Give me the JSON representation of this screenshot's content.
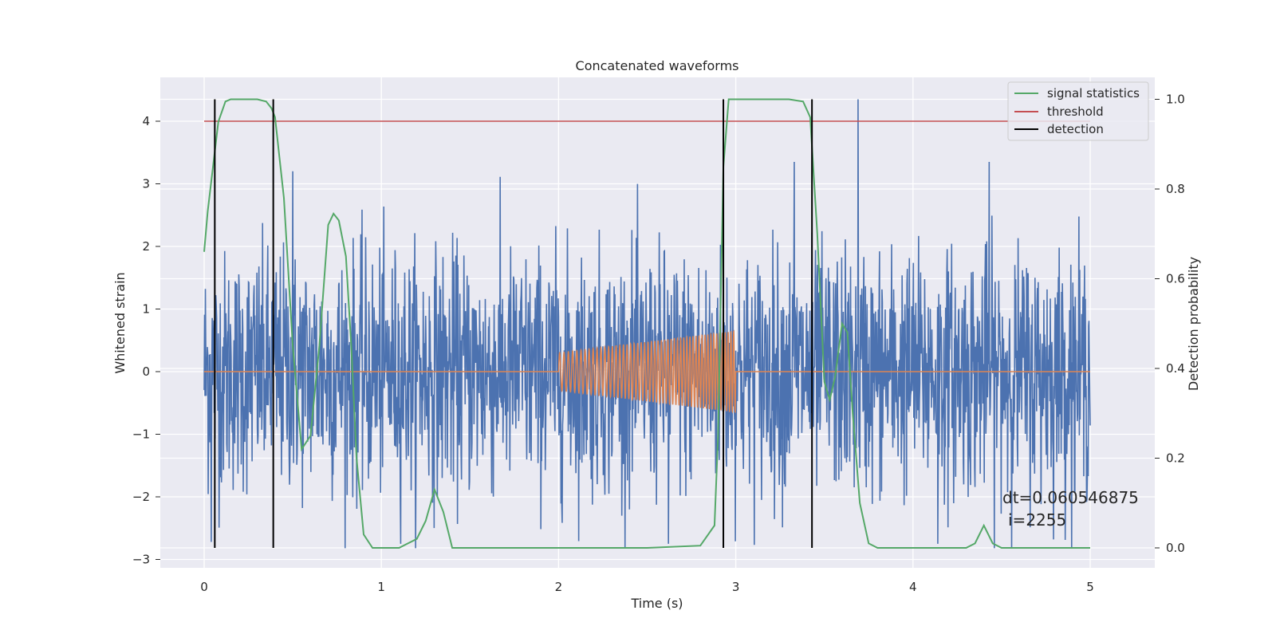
{
  "chart_data": {
    "type": "line",
    "title": "Concatenated waveforms",
    "xlabel": "Time (s)",
    "ylabel": "Whitened strain",
    "y2label": "Detection probability",
    "xlim": [
      -0.25,
      5.35
    ],
    "ylim": [
      -3.2,
      4.55
    ],
    "y2lim": [
      -0.05,
      1.05
    ],
    "x_ticks": [
      0,
      1,
      2,
      3,
      4,
      5
    ],
    "y_ticks": [
      -3,
      -2,
      -1,
      0,
      1,
      2,
      3,
      4
    ],
    "y2_ticks": [
      0.0,
      0.2,
      0.4,
      0.6,
      0.8,
      1.0
    ],
    "x_tick_labels": [
      "0",
      "1",
      "2",
      "3",
      "4",
      "5"
    ],
    "y_tick_labels": [
      "−3",
      "−2",
      "−1",
      "0",
      "1",
      "2",
      "3",
      "4"
    ],
    "y2_tick_labels": [
      "0.0",
      "0.2",
      "0.4",
      "0.6",
      "0.8",
      "1.0"
    ],
    "grid": true,
    "legend_position": "top-right",
    "legend": [
      {
        "label": "signal statistics",
        "color": "#55a868"
      },
      {
        "label": "threshold",
        "color": "#c44e52"
      },
      {
        "label": "detection",
        "color": "#000000"
      }
    ],
    "colors": {
      "noise": "#4c72b0",
      "injected_signal": "#dd8452",
      "signal_statistics": "#55a868",
      "threshold": "#c44e52",
      "detection": "#000000",
      "axes_background": "#eaeaf2",
      "grid": "#ffffff"
    },
    "noise": {
      "x_range": [
        0,
        5
      ],
      "typical_peak": 2.3,
      "max_peak": 4.35,
      "min_trough": -2.82
    },
    "injected_signal": {
      "x_range": [
        2.0,
        3.0
      ],
      "start_amplitude": 0.3,
      "end_amplitude": 0.65
    },
    "threshold": {
      "value": 4.0,
      "x_range": [
        0,
        5
      ]
    },
    "signal_statistics": {
      "x": [
        0,
        0.02,
        0.05,
        0.08,
        0.12,
        0.15,
        0.2,
        0.3,
        0.35,
        0.38,
        0.4,
        0.45,
        0.5,
        0.55,
        0.6,
        0.65,
        0.7,
        0.73,
        0.76,
        0.8,
        0.83,
        0.86,
        0.9,
        0.95,
        1.0,
        1.1,
        1.2,
        1.25,
        1.3,
        1.35,
        1.4,
        1.5,
        2.0,
        2.5,
        2.8,
        2.88,
        2.9,
        2.93,
        2.96,
        3.0,
        3.3,
        3.38,
        3.42,
        3.46,
        3.5,
        3.53,
        3.56,
        3.6,
        3.63,
        3.66,
        3.7,
        3.75,
        3.8,
        4.0,
        4.3,
        4.35,
        4.4,
        4.45,
        4.5,
        4.6,
        5.0
      ],
      "y": [
        0.66,
        0.75,
        0.85,
        0.95,
        0.995,
        1.0,
        1.0,
        1.0,
        0.995,
        0.98,
        0.96,
        0.78,
        0.45,
        0.22,
        0.25,
        0.45,
        0.72,
        0.745,
        0.73,
        0.65,
        0.45,
        0.2,
        0.03,
        0.0,
        0.0,
        0.0,
        0.02,
        0.06,
        0.13,
        0.08,
        0.0,
        0.0,
        0.0,
        0.0,
        0.005,
        0.05,
        0.25,
        0.85,
        1.0,
        1.0,
        1.0,
        0.995,
        0.96,
        0.7,
        0.37,
        0.33,
        0.38,
        0.5,
        0.48,
        0.3,
        0.1,
        0.01,
        0.0,
        0.0,
        0.0,
        0.01,
        0.05,
        0.01,
        0.0,
        0.0,
        0.0
      ]
    },
    "detections": [
      0.06,
      0.39,
      2.93,
      3.43
    ],
    "annotation": {
      "line1": "dt=0.060546875",
      "line2": "i=2255"
    }
  }
}
